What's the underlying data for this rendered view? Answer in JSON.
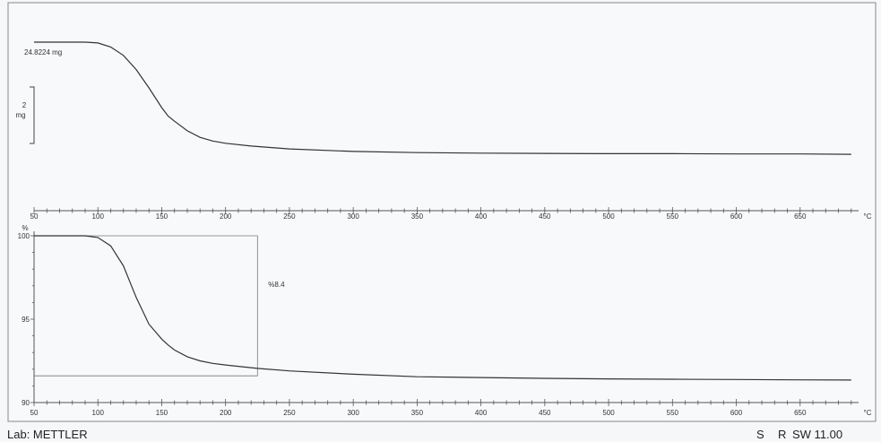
{
  "chart_data": [
    {
      "type": "line",
      "title": "",
      "xlabel": "",
      "ylabel": "",
      "xunit": "°C",
      "xlim": [
        50,
        700
      ],
      "xticks": [
        50,
        100,
        150,
        200,
        250,
        300,
        350,
        400,
        450,
        500,
        550,
        600,
        650
      ],
      "start_label": "24.8224 mg",
      "scale_bar_value": "2",
      "scale_bar_unit": "mg",
      "series": [
        {
          "x": [
            50,
            90,
            100,
            110,
            120,
            130,
            140,
            150,
            155,
            160,
            170,
            180,
            190,
            200,
            220,
            250,
            300,
            350,
            400,
            450,
            500,
            550,
            600,
            650,
            690
          ],
          "y": [
            24.82,
            24.82,
            24.79,
            24.65,
            24.35,
            23.85,
            23.2,
            22.5,
            22.2,
            22.02,
            21.68,
            21.45,
            21.32,
            21.24,
            21.14,
            21.04,
            20.95,
            20.91,
            20.89,
            20.88,
            20.87,
            20.87,
            20.86,
            20.86,
            20.85
          ]
        }
      ]
    },
    {
      "type": "line",
      "title": "",
      "xlabel": "",
      "ylabel": "%",
      "xunit": "°C",
      "xlim": [
        50,
        700
      ],
      "ylim": [
        90,
        100
      ],
      "xticks": [
        50,
        100,
        150,
        200,
        250,
        300,
        350,
        400,
        450,
        500,
        550,
        600,
        650
      ],
      "yticks": [
        90,
        95,
        100
      ],
      "annotation": "%8.4",
      "marker_x": 225,
      "marker_y": 91.6,
      "series": [
        {
          "x": [
            50,
            90,
            100,
            110,
            120,
            130,
            140,
            150,
            155,
            160,
            170,
            180,
            190,
            200,
            225,
            250,
            300,
            350,
            400,
            450,
            500,
            550,
            600,
            650,
            690
          ],
          "y": [
            100.0,
            100.0,
            99.9,
            99.4,
            98.2,
            96.3,
            94.7,
            93.8,
            93.45,
            93.15,
            92.75,
            92.5,
            92.35,
            92.25,
            92.05,
            91.9,
            91.7,
            91.55,
            91.5,
            91.45,
            91.42,
            91.4,
            91.38,
            91.36,
            91.35
          ]
        }
      ]
    }
  ],
  "footer": {
    "lab": "Lab: METTLER",
    "s": "S",
    "r": "R",
    "sw": "SW 11.00"
  }
}
